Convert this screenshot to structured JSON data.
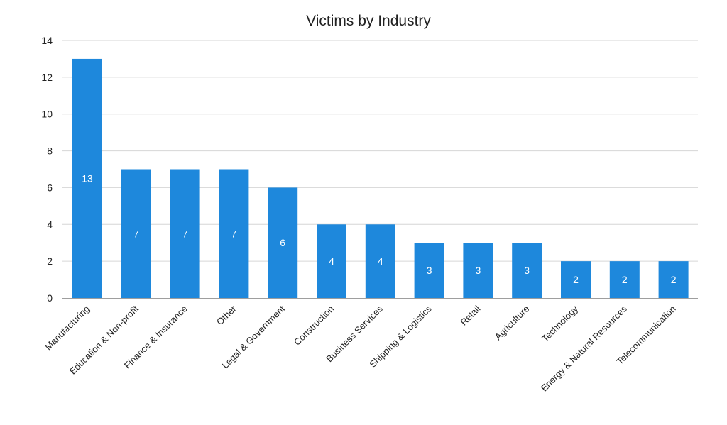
{
  "chart_data": {
    "type": "bar",
    "title": "Victims by Industry",
    "xlabel": "",
    "ylabel": "",
    "ylim": [
      0,
      14
    ],
    "yticks": [
      0,
      2,
      4,
      6,
      8,
      10,
      12,
      14
    ],
    "grid": true,
    "legend": "none",
    "bar_color": "#1e88dc",
    "categories": [
      "Manufacturing",
      "Education & Non-profit",
      "Finance & Insurance",
      "Other",
      "Legal & Government",
      "Construction",
      "Business Services",
      "Shipping & Logistics",
      "Retail",
      "Agriculture",
      "Technology",
      "Energy & Natural Resources",
      "Telecommunication"
    ],
    "values": [
      13,
      7,
      7,
      7,
      6,
      4,
      4,
      3,
      3,
      3,
      2,
      2,
      2
    ]
  }
}
